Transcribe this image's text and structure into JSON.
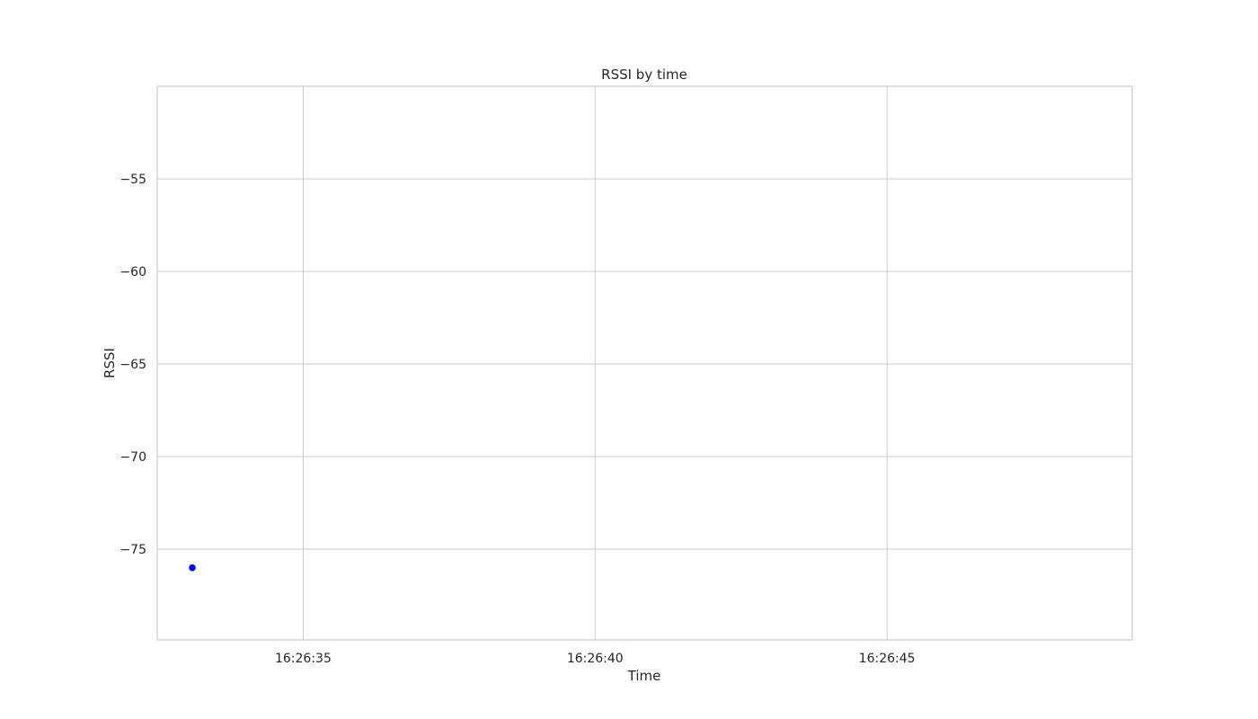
{
  "chart_data": {
    "type": "scatter",
    "title": "RSSI by time",
    "xlabel": "Time",
    "ylabel": "RSSI",
    "x_unit": "seconds after 16:26:00",
    "xlim": [
      32.5,
      49.2
    ],
    "ylim": [
      -79.9,
      -50.0
    ],
    "x_ticks": [
      {
        "value": 35,
        "label": "16:26:35"
      },
      {
        "value": 40,
        "label": "16:26:40"
      },
      {
        "value": 45,
        "label": "16:26:45"
      }
    ],
    "y_ticks": [
      {
        "value": -55,
        "label": "−55"
      },
      {
        "value": -60,
        "label": "−60"
      },
      {
        "value": -65,
        "label": "−65"
      },
      {
        "value": -70,
        "label": "−70"
      },
      {
        "value": -75,
        "label": "−75"
      }
    ],
    "grid": true,
    "series": [
      {
        "color": "#0000ff",
        "marker": "dot",
        "points": [
          [
            33.1,
            -76.0
          ],
          [
            33.1,
            -76.0
          ],
          [
            33.1,
            -76.0
          ],
          [
            33.1,
            -76.0
          ],
          [
            33.1,
            -76.0
          ],
          [
            33.1,
            -76.0
          ],
          [
            33.1,
            -76.0
          ],
          [
            33.1,
            -76.0
          ],
          [
            33.1,
            -76.0
          ],
          [
            33.1,
            -76.0
          ],
          [
            33.1,
            -76.0
          ],
          [
            33.1,
            -76.0
          ],
          [
            33.1,
            -76.0
          ],
          [
            33.1,
            -76.0
          ],
          [
            33.1,
            -76.0
          ],
          [
            33.1,
            -76.0
          ],
          [
            33.1,
            -76.0
          ],
          [
            33.1,
            -76.0
          ],
          [
            33.1,
            -76.0
          ],
          [
            33.1,
            -76.0
          ],
          [
            33.1,
            -76.0
          ],
          [
            33.1,
            -76.0
          ],
          [
            33.1,
            -76.0
          ],
          [
            33.1,
            -76.0
          ],
          [
            33.1,
            -76.0
          ],
          [
            33.1,
            -76.0
          ],
          [
            33.1,
            -76.0
          ],
          [
            33.1,
            -76.0
          ],
          [
            33.1,
            -76.0
          ],
          [
            33.1,
            -76.0
          ]
        ]
      }
    ]
  }
}
